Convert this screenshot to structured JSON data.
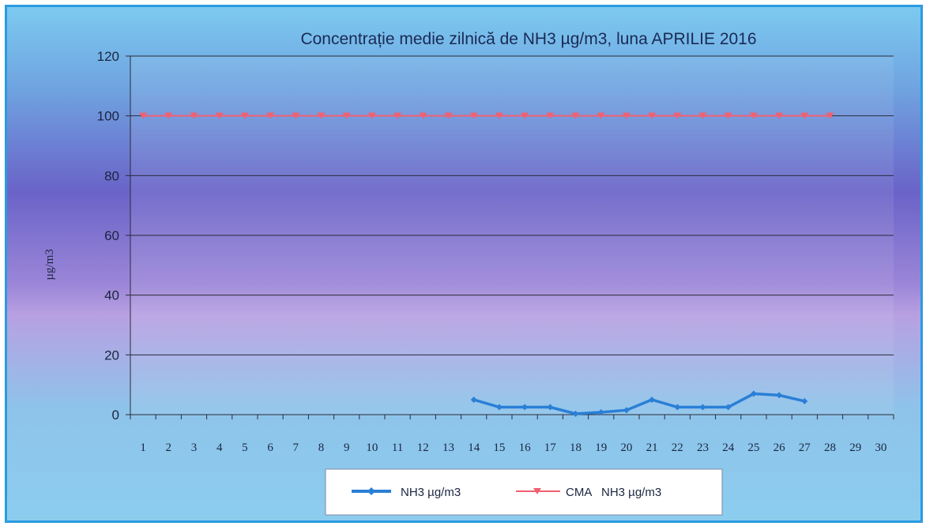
{
  "chart_data": {
    "type": "line",
    "title": "Concentrație medie zilnică de NH3 µg/m3, luna APRILIE 2016",
    "ylabel": "µg/m3",
    "xlabel": "",
    "ylim": [
      0,
      120
    ],
    "yticks": [
      "0",
      "20",
      "40",
      "60",
      "80",
      "100",
      "120"
    ],
    "categories": [
      "1",
      "2",
      "3",
      "4",
      "5",
      "6",
      "7",
      "8",
      "9",
      "10",
      "11",
      "12",
      "13",
      "14",
      "15",
      "16",
      "17",
      "18",
      "19",
      "20",
      "21",
      "22",
      "23",
      "24",
      "25",
      "26",
      "27",
      "28",
      "29",
      "30"
    ],
    "grid": true,
    "legend_position": "bottom",
    "series": [
      {
        "name": "NH3 µg/m3",
        "color": "#2a7fd6",
        "marker": "diamond",
        "values": [
          null,
          null,
          null,
          null,
          null,
          null,
          null,
          null,
          null,
          null,
          null,
          null,
          null,
          5,
          2.5,
          2.5,
          2.5,
          0.3,
          0.8,
          1.5,
          5,
          2.5,
          2.5,
          2.5,
          7,
          6.5,
          4.5,
          null,
          null,
          null
        ]
      },
      {
        "name": "CMA   NH3 µg/m3",
        "color": "#f06070",
        "marker": "triangle-down",
        "values": [
          100,
          100,
          100,
          100,
          100,
          100,
          100,
          100,
          100,
          100,
          100,
          100,
          100,
          100,
          100,
          100,
          100,
          100,
          100,
          100,
          100,
          100,
          100,
          100,
          100,
          100,
          100,
          100,
          null,
          null
        ]
      }
    ]
  }
}
